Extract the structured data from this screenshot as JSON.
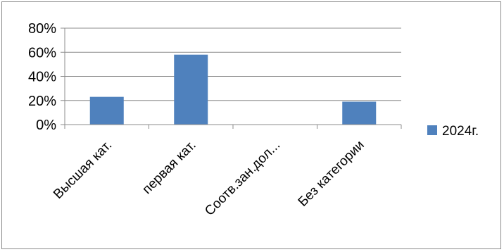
{
  "chart_data": {
    "type": "bar",
    "categories": [
      "Высшая кат.",
      "первая кат.",
      "Соотв.зан.дол...",
      "Без категории"
    ],
    "series": [
      {
        "name": "2024г.",
        "values": [
          23,
          58,
          0,
          19
        ]
      }
    ],
    "ylim": [
      0,
      80
    ],
    "yticks": [
      "0%",
      "20%",
      "40%",
      "60%",
      "80%"
    ],
    "grid": true,
    "legend_position": "right",
    "colors": {
      "series": "#4f81bd",
      "grid": "#8c8c8c",
      "axis": "#8c8c8c"
    }
  }
}
